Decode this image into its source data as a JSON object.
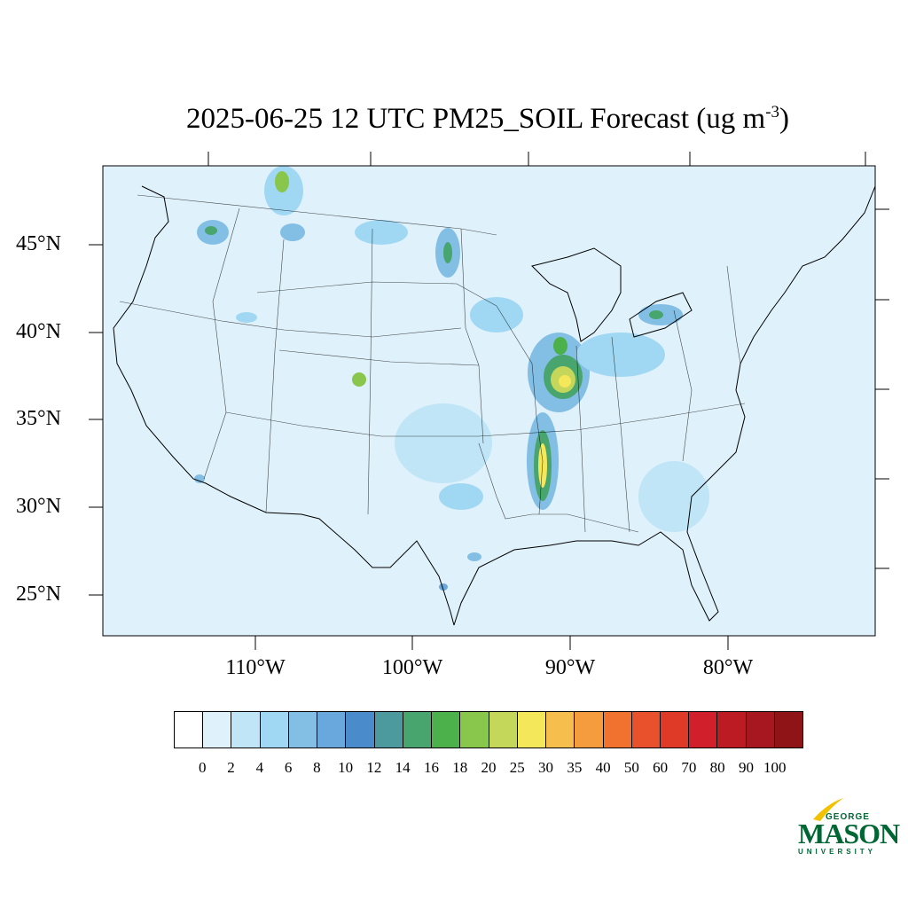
{
  "title": {
    "main": "2025-06-25 12 UTC PM25_SOIL Forecast (ug m",
    "exponent": "-3",
    "close": ")"
  },
  "map": {
    "lat_labels": [
      "45°N",
      "40°N",
      "35°N",
      "30°N",
      "25°N"
    ],
    "lon_labels": [
      "110°W",
      "100°W",
      "90°W",
      "80°W"
    ],
    "background_color": "#dff1fb"
  },
  "colorbar": {
    "colors": [
      "#ffffff",
      "#dff1fb",
      "#bfe5f7",
      "#a0d8f4",
      "#83bfe5",
      "#69a8dc",
      "#4a8bcb",
      "#4d9a9e",
      "#48a56e",
      "#4cb14a",
      "#88c64c",
      "#c5d75a",
      "#f5e75a",
      "#f6bf4d",
      "#f59c3e",
      "#f1722e",
      "#e9512c",
      "#df3a28",
      "#d11f2b",
      "#bd1b24",
      "#a6171f",
      "#8e1418"
    ],
    "labels": [
      "0",
      "2",
      "4",
      "6",
      "8",
      "10",
      "12",
      "14",
      "16",
      "18",
      "20",
      "25",
      "30",
      "35",
      "40",
      "50",
      "60",
      "70",
      "80",
      "90",
      "100"
    ]
  },
  "logo": {
    "line1": "GEORGE",
    "line2": "MASON",
    "line3": "UNIVERSITY",
    "color": "#006633",
    "accent": "#f2c200"
  }
}
